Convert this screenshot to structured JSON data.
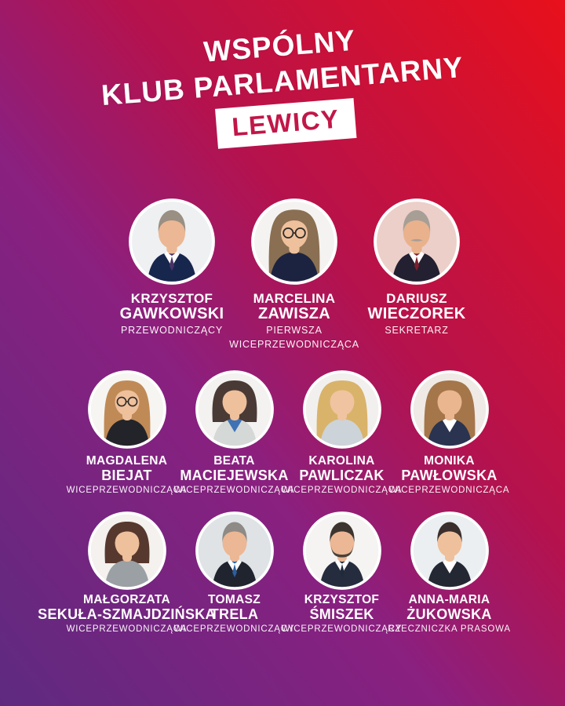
{
  "title": {
    "line1": "WSPÓLNY",
    "line2": "KLUB PARLAMENTARNY",
    "badge": "LEWICY"
  },
  "colors": {
    "gradient_top_right": "#e8101b",
    "gradient_crimson": "#b5124d",
    "gradient_magenta": "#8a2080",
    "gradient_bottom_left": "#5e2a80",
    "badge_background": "#ffffff",
    "badge_text": "#c11748",
    "name_text": "#ffffff",
    "role_text": "#ffffff"
  },
  "rows": [
    {
      "people": [
        {
          "first": "KRZYSZTOF",
          "last": "GAWKOWSKI",
          "role1": "PRZEWODNICZĄCY",
          "role2": "",
          "avatar": {
            "bg": "#eef0f1",
            "hair": "#9a8f83",
            "skin": "#ecb794",
            "top": "#17264d",
            "shirt": "#ffffff",
            "tie": "#4a3366",
            "hairstyle": "short",
            "glasses": false,
            "mustache": false,
            "beard": ""
          }
        },
        {
          "first": "MARCELINA",
          "last": "ZAWISZA",
          "role1": "PIERWSZA",
          "role2": "WICEPRZEWODNICZĄCA",
          "avatar": {
            "bg": "#f5f3f1",
            "hair": "#8a6f52",
            "skin": "#efc09c",
            "top": "#1c2340",
            "shirt": "",
            "tie": "",
            "hairstyle": "long",
            "glasses": true,
            "mustache": false,
            "beard": ""
          }
        },
        {
          "first": "DARIUSZ",
          "last": "WIECZOREK",
          "role1": "SEKRETARZ",
          "role2": "",
          "avatar": {
            "bg": "#eccfc9",
            "hair": "#a79f96",
            "skin": "#e9b28c",
            "top": "#232031",
            "shirt": "#ffffff",
            "tie": "#7a1f2b",
            "hairstyle": "short",
            "glasses": false,
            "mustache": true,
            "beard": ""
          }
        }
      ]
    },
    {
      "people": [
        {
          "first": "MAGDALENA",
          "last": "BIEJAT",
          "role1": "WICEPRZEWODNICZĄCA",
          "role2": "",
          "avatar": {
            "bg": "#f7f5f2",
            "hair": "#c08a56",
            "skin": "#efc09c",
            "top": "#23242a",
            "shirt": "",
            "tie": "",
            "hairstyle": "long",
            "glasses": true,
            "mustache": false,
            "beard": ""
          }
        },
        {
          "first": "BEATA",
          "last": "MACIEJEWSKA",
          "role1": "WICEPRZEWODNICZĄCA",
          "role2": "",
          "avatar": {
            "bg": "#f3f2f0",
            "hair": "#4a3a35",
            "skin": "#efc09c",
            "top": "#d4d8d6",
            "shirt": "#3e72b4",
            "tie": "",
            "hairstyle": "bob",
            "glasses": false,
            "mustache": false,
            "beard": ""
          }
        },
        {
          "first": "KAROLINA",
          "last": "PAWLICZAK",
          "role1": "WICEPRZEWODNICZĄCA",
          "role2": "",
          "avatar": {
            "bg": "#f2f0ee",
            "hair": "#d9b36a",
            "skin": "#f0c4a0",
            "top": "#ccd3d9",
            "shirt": "",
            "tie": "",
            "hairstyle": "curly",
            "glasses": false,
            "mustache": false,
            "beard": ""
          }
        },
        {
          "first": "MONIKA",
          "last": "PAWŁOWSKA",
          "role1": "WICEPRZEWODNICZĄCA",
          "role2": "",
          "avatar": {
            "bg": "#efeae6",
            "hair": "#a4764a",
            "skin": "#eab68f",
            "top": "#2a3350",
            "shirt": "#ffffff",
            "tie": "",
            "hairstyle": "curly",
            "glasses": false,
            "mustache": false,
            "beard": ""
          }
        }
      ]
    },
    {
      "people": [
        {
          "first": "MAŁGORZATA",
          "last": "SEKUŁA-SZMAJDZIŃSKA",
          "role1": "WICEPRZEWODNICZĄCA",
          "role2": "",
          "avatar": {
            "bg": "#f4f1ee",
            "hair": "#57382e",
            "skin": "#eec09c",
            "top": "#9aa0a4",
            "shirt": "",
            "tie": "",
            "hairstyle": "bob",
            "glasses": false,
            "mustache": false,
            "beard": ""
          }
        },
        {
          "first": "TOMASZ",
          "last": "TRELA",
          "role1": "WICEPRZEWODNICZĄCY",
          "role2": "",
          "avatar": {
            "bg": "#dfe3e6",
            "hair": "#8e8a85",
            "skin": "#ecb794",
            "top": "#20242e",
            "shirt": "#ffffff",
            "tie": "#2c5f9e",
            "hairstyle": "short",
            "glasses": false,
            "mustache": false,
            "beard": ""
          }
        },
        {
          "first": "KRZYSZTOF",
          "last": "ŚMISZEK",
          "role1": "WICEPRZEWODNICZĄCY",
          "role2": "",
          "avatar": {
            "bg": "#f6f4f2",
            "hair": "#3c352f",
            "skin": "#ecb794",
            "top": "#252c3e",
            "shirt": "#ffffff",
            "tie": "#1f2a3a",
            "hairstyle": "short",
            "glasses": false,
            "mustache": false,
            "beard": "#4a423a"
          }
        },
        {
          "first": "ANNA-MARIA",
          "last": "ŻUKOWSKA",
          "role1": "RZECZNICZKA PRASOWA",
          "role2": "",
          "avatar": {
            "bg": "#eceff1",
            "hair": "#3a2f2c",
            "skin": "#efc09c",
            "top": "#232833",
            "shirt": "#ffffff",
            "tie": "",
            "hairstyle": "short",
            "glasses": false,
            "mustache": false,
            "beard": ""
          }
        }
      ]
    }
  ]
}
